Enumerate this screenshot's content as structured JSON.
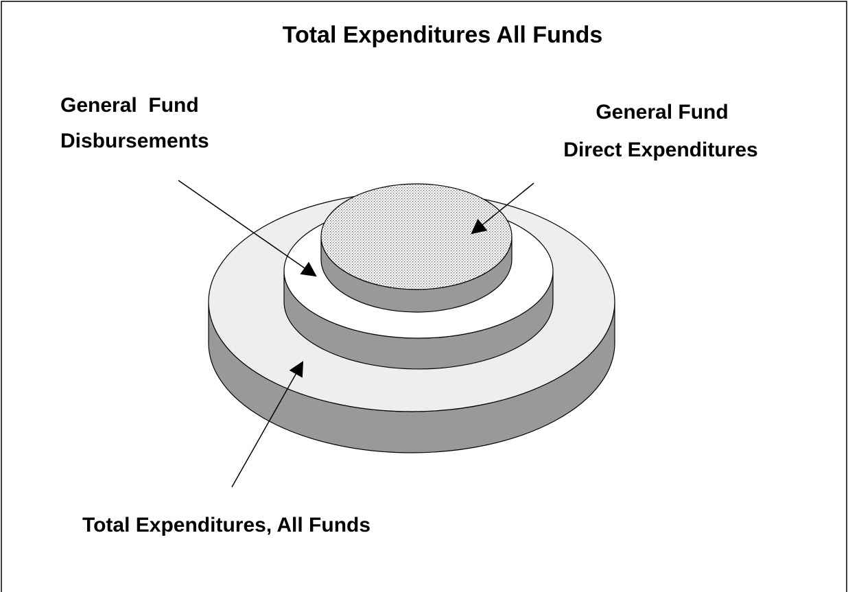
{
  "title": "Total Expenditures All Funds",
  "labels": [
    {
      "lines": [
        "General  Fund",
        "Disbursements"
      ]
    },
    {
      "lines": [
        "General Fund",
        "Direct Expenditures"
      ]
    },
    {
      "lines": [
        "Total Expenditures, All Funds"
      ]
    }
  ]
}
